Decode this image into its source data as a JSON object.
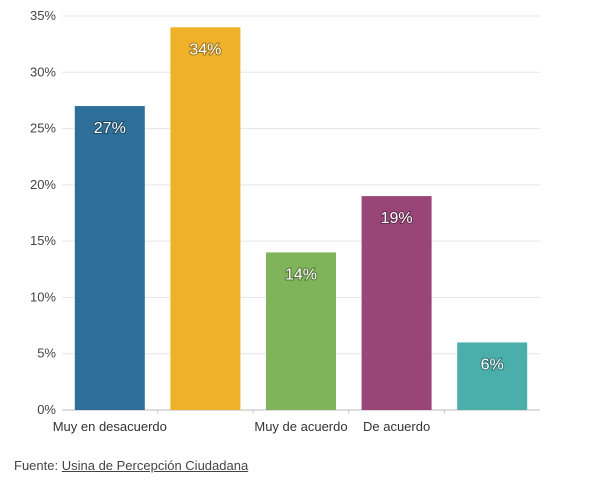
{
  "chart_data": {
    "type": "bar",
    "categories": [
      "Muy en desacuerdo",
      "",
      "Muy de acuerdo",
      "De acuerdo",
      ""
    ],
    "values": [
      27,
      34,
      14,
      19,
      6
    ],
    "data_labels": [
      "27%",
      "34%",
      "14%",
      "19%",
      "6%"
    ],
    "colors": [
      "#2e6f99",
      "#f0b12a",
      "#7fb45b",
      "#994578",
      "#4aaeaa"
    ],
    "ylim": [
      0,
      35
    ],
    "yticks": [
      0,
      5,
      10,
      15,
      20,
      25,
      30,
      35
    ],
    "ytick_labels": [
      "0%",
      "5%",
      "10%",
      "15%",
      "20%",
      "25%",
      "30%",
      "35%"
    ],
    "grid": true,
    "title": "",
    "xlabel": "",
    "ylabel": ""
  },
  "source": {
    "prefix": "Fuente:",
    "link_text": "Usina de Percepción Ciudadana"
  }
}
